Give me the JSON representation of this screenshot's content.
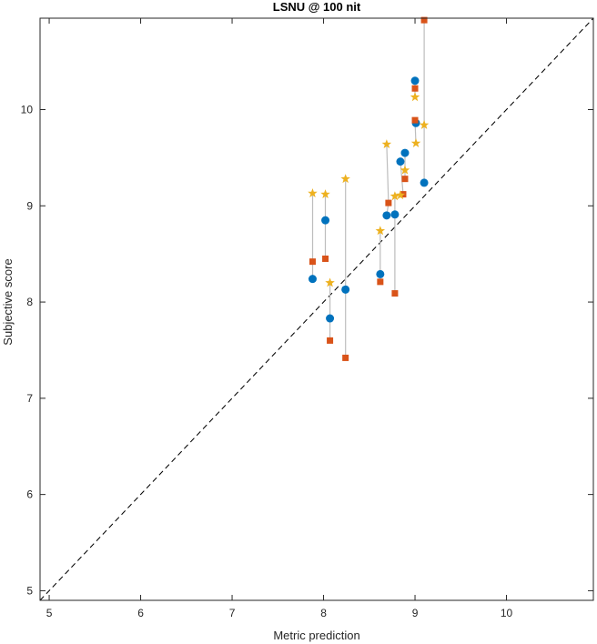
{
  "chart_data": {
    "type": "scatter",
    "title": "LSNU @ 100 nit",
    "xlabel": "Metric prediction",
    "ylabel": "Subjective score",
    "xlim": [
      4.9,
      10.95
    ],
    "ylim": [
      4.9,
      10.95
    ],
    "xticks": [
      5,
      6,
      7,
      8,
      9,
      10
    ],
    "yticks": [
      5,
      6,
      7,
      8,
      9,
      10
    ],
    "grid": false,
    "legend": "none",
    "reference_line": {
      "from": [
        4.9,
        4.9
      ],
      "to": [
        10.95,
        10.95
      ],
      "style": "dashed",
      "color": "#000000"
    },
    "colors": {
      "circle": "#0072BD",
      "square": "#D95319",
      "star": "#EDB120",
      "connector": "#BDBDBD"
    },
    "series": [
      {
        "marker": "circle",
        "color": "#0072BD",
        "points": [
          [
            7.88,
            8.24
          ],
          [
            8.02,
            8.85
          ],
          [
            8.07,
            7.83
          ],
          [
            8.24,
            8.13
          ],
          [
            8.62,
            8.29
          ],
          [
            8.69,
            8.9
          ],
          [
            8.78,
            8.91
          ],
          [
            8.84,
            9.46
          ],
          [
            8.89,
            9.55
          ],
          [
            9.0,
            10.3
          ],
          [
            9.01,
            9.86
          ],
          [
            9.1,
            9.24
          ]
        ]
      },
      {
        "marker": "square",
        "color": "#D95319",
        "points": [
          [
            7.88,
            8.42
          ],
          [
            8.02,
            8.45
          ],
          [
            8.07,
            7.6
          ],
          [
            8.24,
            7.42
          ],
          [
            8.62,
            8.21
          ],
          [
            8.71,
            9.03
          ],
          [
            8.78,
            8.09
          ],
          [
            8.87,
            9.12
          ],
          [
            8.89,
            9.28
          ],
          [
            9.0,
            10.22
          ],
          [
            9.0,
            9.89
          ],
          [
            9.1,
            10.93
          ]
        ]
      },
      {
        "marker": "star",
        "color": "#EDB120",
        "points": [
          [
            7.88,
            9.13
          ],
          [
            8.02,
            9.12
          ],
          [
            8.07,
            8.2
          ],
          [
            8.24,
            9.28
          ],
          [
            8.62,
            8.74
          ],
          [
            8.69,
            9.64
          ],
          [
            8.78,
            9.1
          ],
          [
            8.84,
            9.11
          ],
          [
            8.89,
            9.37
          ],
          [
            9.0,
            10.13
          ],
          [
            9.01,
            9.65
          ],
          [
            9.1,
            9.84
          ]
        ]
      }
    ]
  }
}
